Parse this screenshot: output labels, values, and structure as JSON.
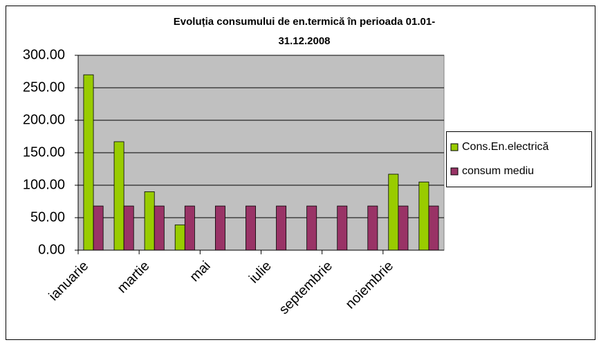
{
  "chart_data": {
    "type": "bar",
    "title": "Evoluția consumului de en.termică în perioada 01.01-31.12.2008",
    "categories": [
      "ianuarie",
      null,
      "martie",
      null,
      "mai",
      null,
      "iulie",
      null,
      "septembrie",
      null,
      "noiembrie",
      null
    ],
    "series": [
      {
        "name": "Cons.En.electrică",
        "color": "#99cc00",
        "values": [
          270,
          167,
          90,
          39,
          null,
          null,
          null,
          null,
          null,
          null,
          117,
          105
        ]
      },
      {
        "name": "consum mediu",
        "color": "#993366",
        "values": [
          68,
          68,
          68,
          68,
          68,
          68,
          68,
          68,
          68,
          68,
          68,
          68
        ]
      }
    ],
    "ylim": [
      0,
      300
    ],
    "yticks": [
      {
        "value": 0,
        "label": "0.00"
      },
      {
        "value": 50,
        "label": "50.00"
      },
      {
        "value": 100,
        "label": "100.00"
      },
      {
        "value": 150,
        "label": "150.00"
      },
      {
        "value": 200,
        "label": "200.00"
      },
      {
        "value": 250,
        "label": "250.00"
      },
      {
        "value": 300,
        "label": "300.00"
      }
    ],
    "grid": true,
    "legend": "right",
    "plot_background": "#c0c0c0"
  }
}
